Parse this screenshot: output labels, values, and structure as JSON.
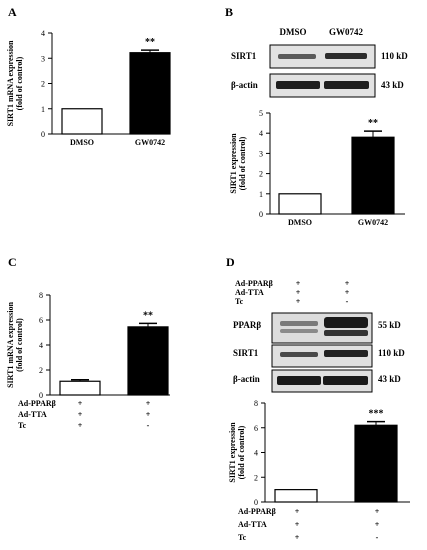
{
  "panels": {
    "A": {
      "letter": "A"
    },
    "B": {
      "letter": "B",
      "blot": {
        "lanes": [
          "DMSO",
          "GW0742"
        ],
        "rows": [
          {
            "label": "SIRT1",
            "size": "110 kD"
          },
          {
            "label": "β-actin",
            "size": "43 kD"
          }
        ]
      }
    },
    "C": {
      "letter": "C",
      "conditions": [
        {
          "label": "Ad-PPARβ",
          "values": [
            "+",
            "+"
          ]
        },
        {
          "label": "Ad-TTA",
          "values": [
            "+",
            "+"
          ]
        },
        {
          "label": "Tc",
          "values": [
            "+",
            "-"
          ]
        }
      ]
    },
    "D": {
      "letter": "D",
      "blot_header": [
        {
          "label": "Ad-PPARβ",
          "values": [
            "+",
            "+"
          ]
        },
        {
          "label": "Ad-TTA",
          "values": [
            "+",
            "+"
          ]
        },
        {
          "label": "Tc",
          "values": [
            "+",
            "-"
          ]
        }
      ],
      "blot_rows": [
        {
          "label": "PPARβ",
          "size": "55 kD"
        },
        {
          "label": "SIRT1",
          "size": "110 kD"
        },
        {
          "label": "β-actin",
          "size": "43 kD"
        }
      ],
      "conditions": [
        {
          "label": "Ad-PPARβ",
          "values": [
            "+",
            "+"
          ]
        },
        {
          "label": "Ad-TTA",
          "values": [
            "+",
            "+"
          ]
        },
        {
          "label": "Tc",
          "values": [
            "+",
            "-"
          ]
        }
      ]
    }
  },
  "chart_data": [
    {
      "panel": "A",
      "type": "bar",
      "ylabel": "SIRT1 mRNA expression (fold of control)",
      "ylabel_lines": [
        "SIRT1 mRNA expression",
        "(fold of control)"
      ],
      "categories": [
        "DMSO",
        "GW0742"
      ],
      "values": [
        1.0,
        3.22
      ],
      "errors": [
        0,
        0.1
      ],
      "fills": [
        "#ffffff",
        "#000000"
      ],
      "ylim": [
        0,
        4
      ],
      "yticks": [
        "0",
        "1",
        "2",
        "3",
        "4"
      ],
      "annotation": "**"
    },
    {
      "panel": "B",
      "type": "bar",
      "ylabel": "SIRT1 expression (fold of control)",
      "ylabel_lines": [
        "SIRT1 expression",
        "(fold of control)"
      ],
      "categories": [
        "DMSO",
        "GW0742"
      ],
      "values": [
        1.0,
        3.8
      ],
      "errors": [
        0,
        0.3
      ],
      "fills": [
        "#ffffff",
        "#000000"
      ],
      "ylim": [
        0,
        5
      ],
      "yticks": [
        "0",
        "1",
        "2",
        "3",
        "4",
        "5"
      ],
      "annotation": "**"
    },
    {
      "panel": "C",
      "type": "bar",
      "ylabel": "SIRT1 mRNA expression (fold of control)",
      "ylabel_lines": [
        "SIRT1 mRNA expression",
        "(fold of control)"
      ],
      "categories": [
        "",
        ""
      ],
      "values": [
        1.1,
        5.45
      ],
      "errors": [
        0.12,
        0.28
      ],
      "fills": [
        "#ffffff",
        "#000000"
      ],
      "ylim": [
        0,
        8
      ],
      "yticks": [
        "0",
        "2",
        "4",
        "6",
        "8"
      ],
      "annotation": "**"
    },
    {
      "panel": "D",
      "type": "bar",
      "ylabel": "SIRT1 expression (fold of control)",
      "ylabel_lines": [
        "SIRT1 expression",
        "(fold of control)"
      ],
      "categories": [
        "",
        ""
      ],
      "values": [
        1.0,
        6.2
      ],
      "errors": [
        0,
        0.3
      ],
      "fills": [
        "#ffffff",
        "#000000"
      ],
      "ylim": [
        0,
        8
      ],
      "yticks": [
        "0",
        "2",
        "4",
        "6",
        "8"
      ],
      "annotation": "***"
    }
  ]
}
